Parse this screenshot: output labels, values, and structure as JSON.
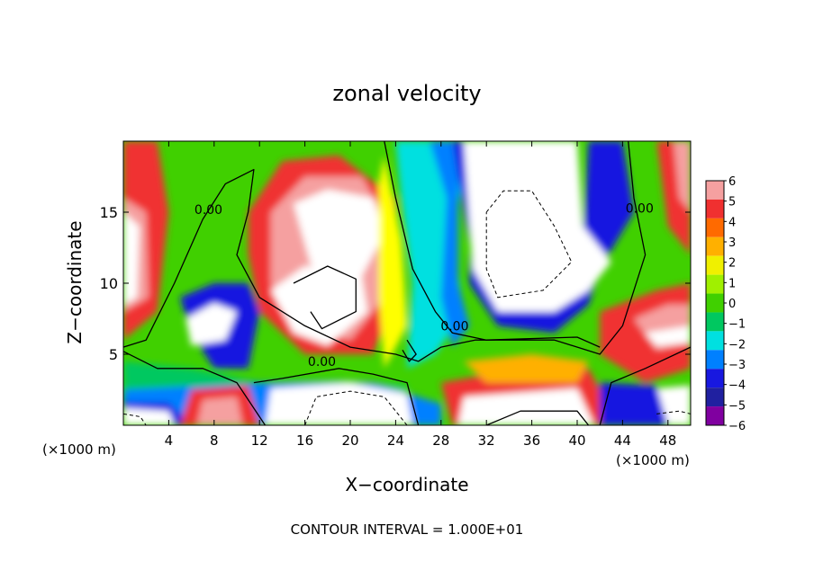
{
  "chart_data": {
    "type": "heatmap",
    "title": "zonal velocity",
    "xlabel": "X−coordinate",
    "ylabel": "Z−coordinate",
    "x_unit_left": "(×1000 m)",
    "x_unit_right": "(×1000 m)",
    "xlim": [
      0,
      50
    ],
    "ylim": [
      0,
      20
    ],
    "x_ticks": [
      4,
      8,
      12,
      16,
      20,
      24,
      28,
      32,
      36,
      40,
      44,
      48
    ],
    "x_tick_labels": [
      "4",
      "8",
      "12",
      "16",
      "20",
      "24",
      "28",
      "32",
      "36",
      "40",
      "44",
      "48"
    ],
    "y_ticks": [
      5,
      10,
      15
    ],
    "y_tick_labels": [
      "5",
      "10",
      "15"
    ],
    "contour_labels": [
      {
        "text": "0.00",
        "x": 7.5,
        "y": 15.2
      },
      {
        "text": "0.00",
        "x": 17.5,
        "y": 4.5
      },
      {
        "text": "0.00",
        "x": 29.2,
        "y": 7.0
      },
      {
        "text": "0.00",
        "x": 45.5,
        "y": 15.3
      }
    ],
    "colorbar": {
      "levels": [
        6,
        5,
        4,
        3,
        2,
        1,
        0,
        -1,
        -2,
        -3,
        -4,
        -5,
        -6
      ],
      "labels": [
        "6",
        "5",
        "4",
        "3",
        "2",
        "1",
        "0",
        "−1",
        "−2",
        "−3",
        "−4",
        "−5",
        "−6"
      ],
      "colors": [
        "#f5a0a0",
        "#f03030",
        "#ff6a00",
        "#ffb000",
        "#f0f000",
        "#a0f000",
        "#40d000",
        "#00c860",
        "#00e0e0",
        "#0080ff",
        "#1818e0",
        "#2020a0",
        "#8000a0"
      ],
      "saturation_color": "#ffffff"
    },
    "footer": "CONTOUR INTERVAL = 1.000E+01"
  }
}
